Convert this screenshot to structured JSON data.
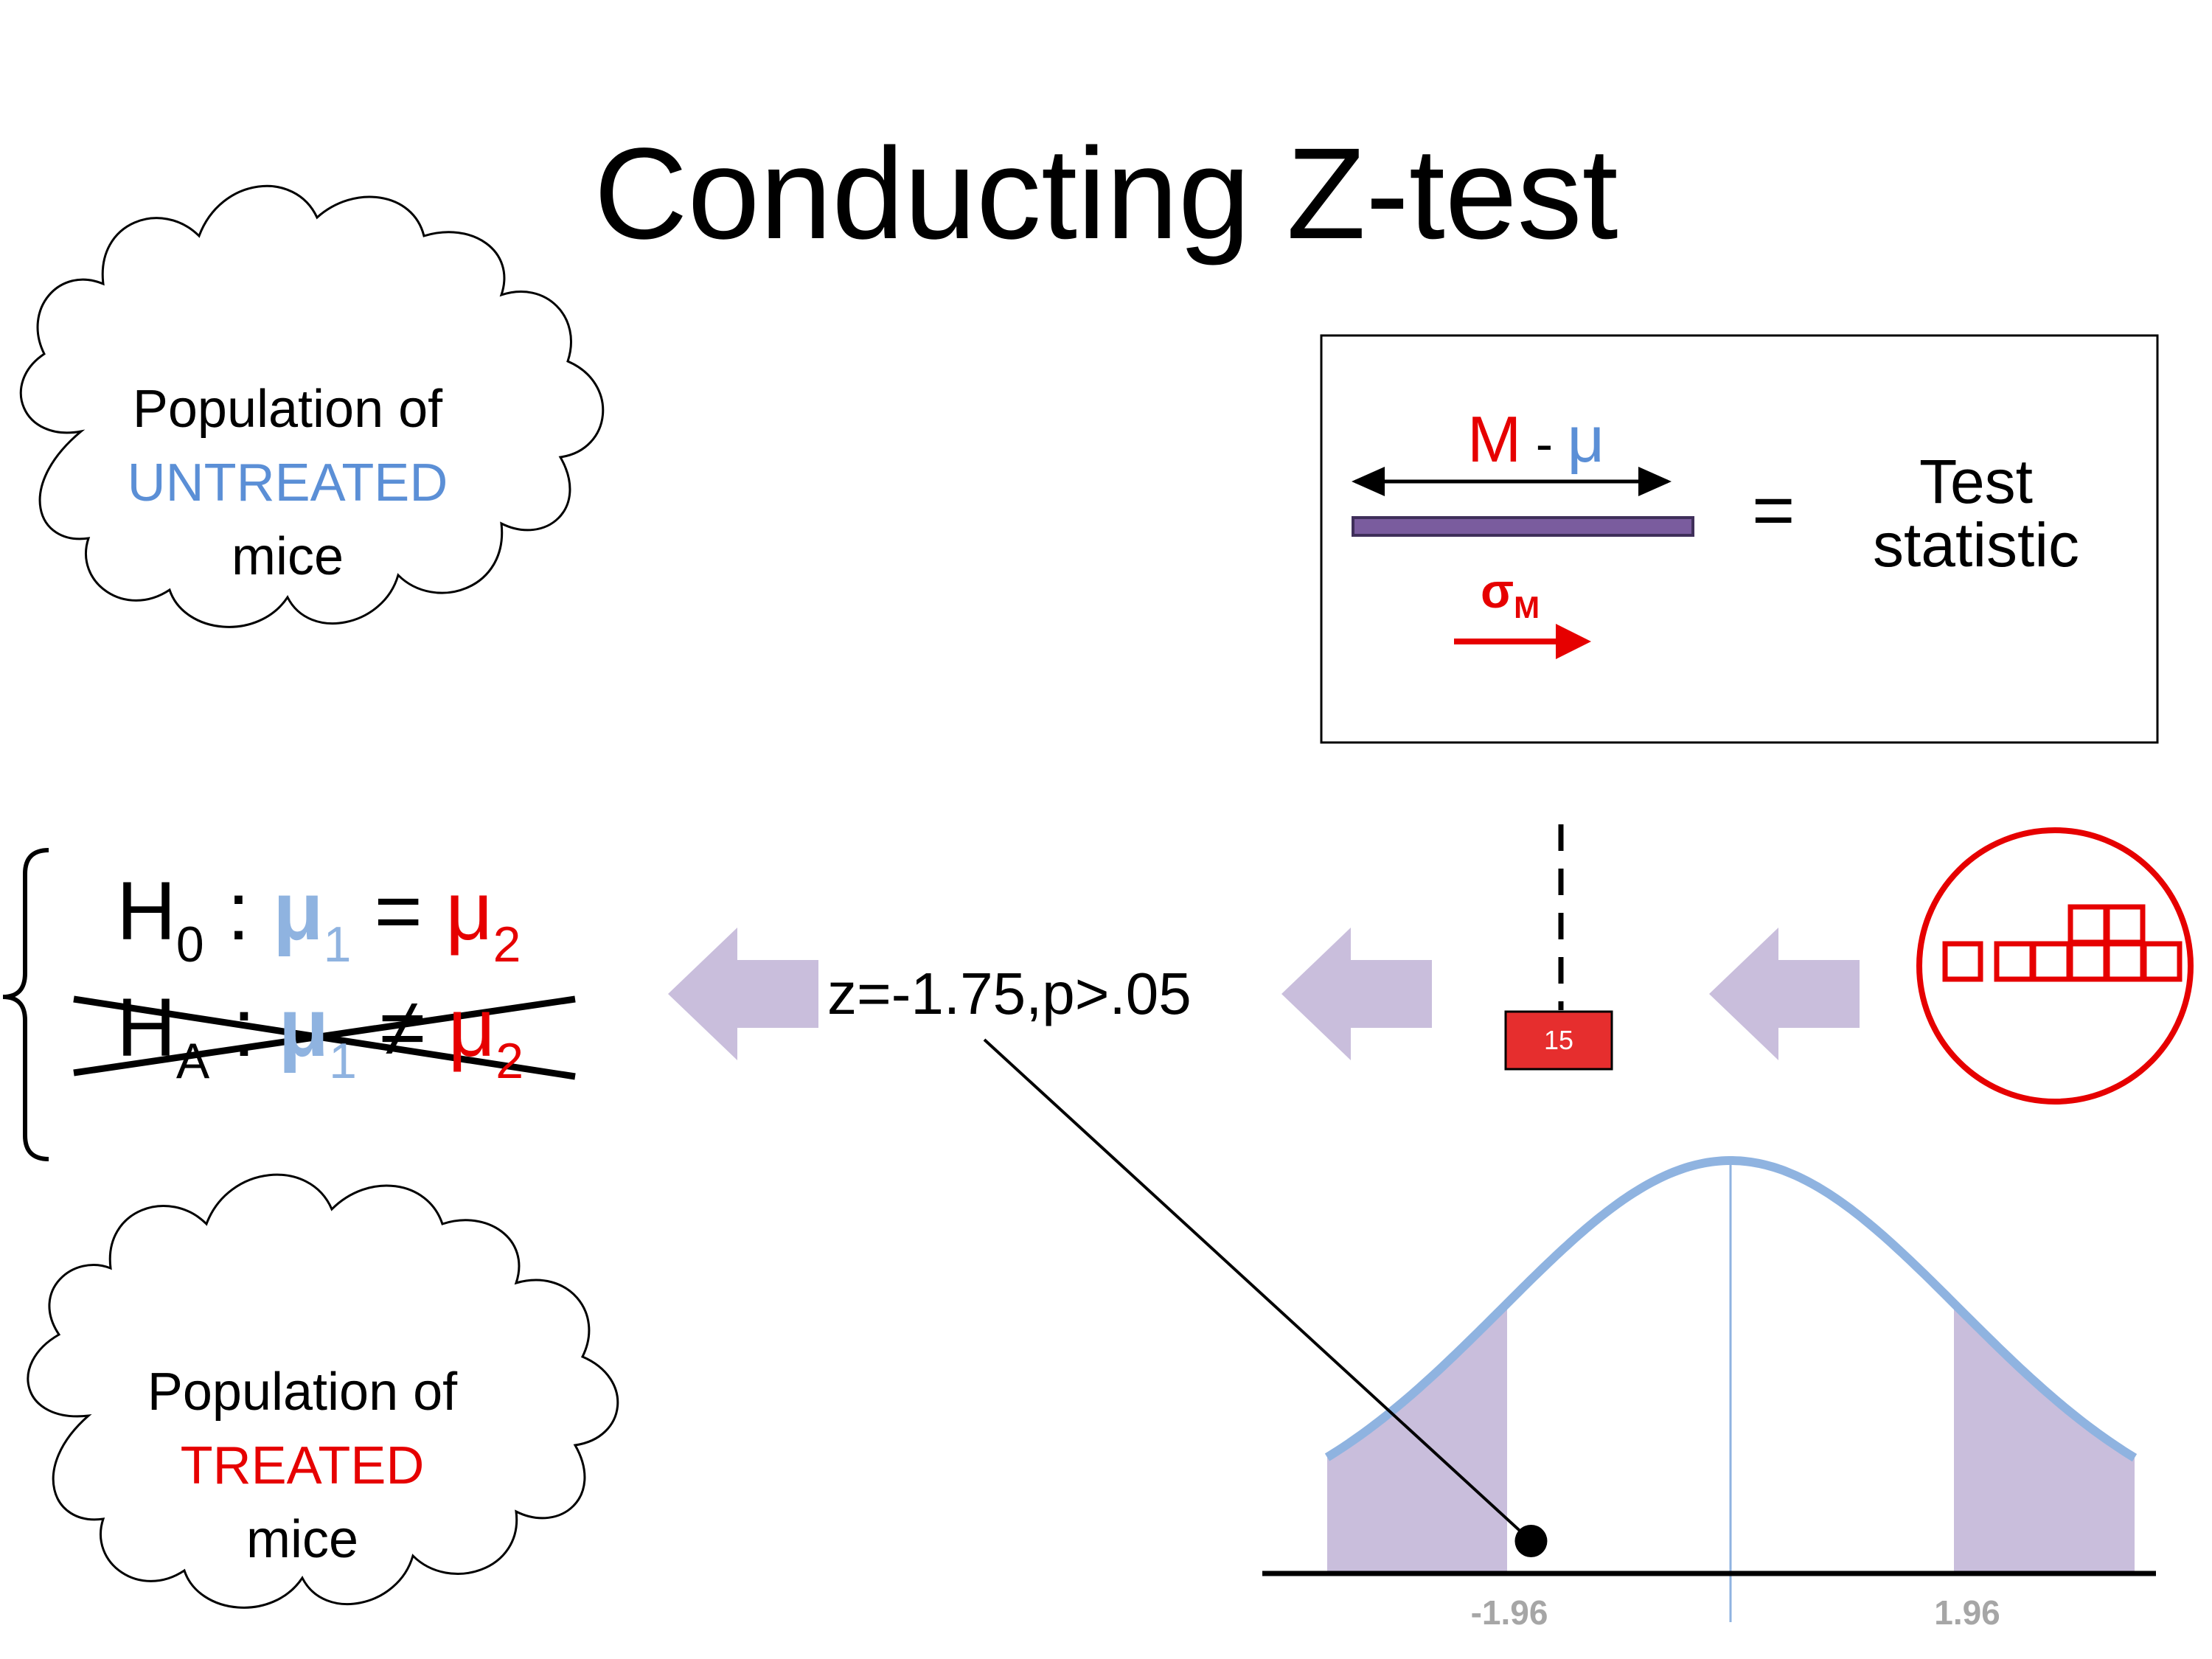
{
  "title": "Conducting Z-test",
  "cloud_untreated": {
    "line1": "Population of",
    "line2": "UNTREATED",
    "line3": "mice"
  },
  "cloud_treated": {
    "line1": "Population of",
    "line2": "TREATED",
    "line3": "mice"
  },
  "hypotheses": {
    "h0": {
      "H": "H",
      "sub": "0",
      "colon": " : ",
      "mu1": "μ",
      "mu1_sub": "1",
      "op": " = ",
      "mu2": "μ",
      "mu2_sub": "2"
    },
    "ha": {
      "H": "H",
      "sub": "A",
      "colon": " : ",
      "mu1": "μ",
      "mu1_sub": "1",
      "op": " ≠ ",
      "mu2": "μ",
      "mu2_sub": "2"
    }
  },
  "result": "z=-1.75,p>.05",
  "formula": {
    "M": "M",
    "minus": " - ",
    "mu": "μ",
    "sigma": "σ",
    "sigma_sub": "M",
    "equals": "=",
    "label_line1": "Test",
    "label_line2": "statistic"
  },
  "sample_value": "15",
  "distribution": {
    "critical_low": "-1.96",
    "critical_high": "1.96",
    "observed_z": -1.75
  },
  "colors": {
    "blue": "#5b8fd6",
    "red": "#e60000",
    "purple_arrow": "#c9bedc",
    "curve": "#8fb3e0",
    "bar": "#7a5c9e"
  }
}
